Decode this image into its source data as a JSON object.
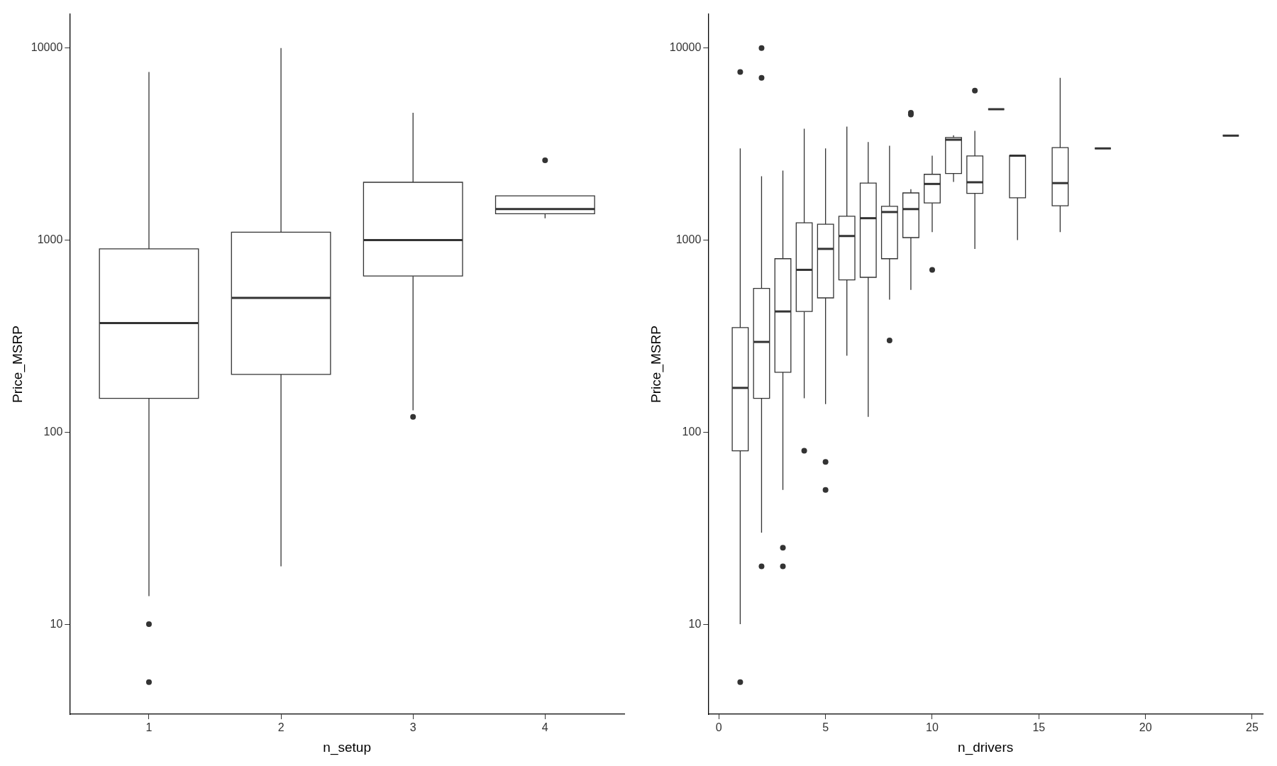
{
  "chart_data": [
    {
      "type": "box",
      "categories": [
        "1",
        "2",
        "3",
        "4"
      ],
      "xlabel": "n_setup",
      "ylabel": "Price_MSRP",
      "log": "y",
      "ylim": [
        3.4,
        15000
      ],
      "yticks": [
        10,
        100,
        1000,
        10000
      ],
      "grid": false,
      "boxes": [
        {
          "low": 14,
          "q1": 150,
          "median": 370,
          "q3": 900,
          "high": 7500,
          "outliers": [
            10,
            5
          ]
        },
        {
          "low": 20,
          "q1": 200,
          "median": 500,
          "q3": 1100,
          "high": 10000
        },
        {
          "low": 130,
          "q1": 650,
          "median": 1000,
          "q3": 2000,
          "high": 4600,
          "outliers": [
            120
          ]
        },
        {
          "low": 1300,
          "q1": 1370,
          "median": 1450,
          "q3": 1700,
          "high": 1700,
          "outliers": [
            2600
          ]
        }
      ]
    },
    {
      "type": "box",
      "x": [
        1,
        2,
        3,
        4,
        5,
        6,
        7,
        8,
        9,
        10,
        11,
        12,
        13,
        14,
        16,
        18,
        24
      ],
      "xlabel": "n_drivers",
      "ylabel": "Price_MSRP",
      "log": "y",
      "ylim": [
        3.4,
        15000
      ],
      "yticks": [
        10,
        100,
        1000,
        10000
      ],
      "xlim": [
        -0.5,
        25.5
      ],
      "xticks": [
        0,
        5,
        10,
        15,
        20,
        25
      ],
      "grid": false,
      "boxes": [
        {
          "low": 10,
          "q1": 80,
          "median": 170,
          "q3": 350,
          "high": 3000,
          "outliers": [
            7500,
            5
          ]
        },
        {
          "low": 30,
          "q1": 150,
          "median": 295,
          "q3": 560,
          "high": 2150,
          "outliers": [
            10000,
            7000,
            20
          ]
        },
        {
          "low": 50,
          "q1": 205,
          "median": 425,
          "q3": 800,
          "high": 2300,
          "outliers": [
            25,
            20
          ]
        },
        {
          "low": 150,
          "q1": 425,
          "median": 700,
          "q3": 1230,
          "high": 3800,
          "outliers": [
            80
          ]
        },
        {
          "low": 140,
          "q1": 500,
          "median": 900,
          "q3": 1210,
          "high": 3000,
          "outliers": [
            70,
            50
          ]
        },
        {
          "low": 250,
          "q1": 620,
          "median": 1050,
          "q3": 1330,
          "high": 3900
        },
        {
          "low": 120,
          "q1": 640,
          "median": 1300,
          "q3": 1980,
          "high": 3240
        },
        {
          "low": 490,
          "q1": 800,
          "median": 1400,
          "q3": 1500,
          "high": 3100,
          "outliers": [
            300
          ]
        },
        {
          "low": 550,
          "q1": 1030,
          "median": 1450,
          "q3": 1760,
          "high": 1840,
          "outliers": [
            4600,
            4500
          ]
        },
        {
          "low": 1100,
          "q1": 1560,
          "median": 1960,
          "q3": 2200,
          "high": 2750,
          "outliers": [
            700
          ]
        },
        {
          "low": 2010,
          "q1": 2220,
          "median": 3330,
          "q3": 3420,
          "high": 3510
        },
        {
          "low": 900,
          "q1": 1750,
          "median": 2000,
          "q3": 2740,
          "high": 3700,
          "outliers": [
            6000
          ]
        },
        {
          "low": 4800,
          "q1": 4800,
          "median": 4800,
          "q3": 4800,
          "high": 4800
        },
        {
          "low": 1000,
          "q1": 1660,
          "median": 2750,
          "q3": 2750,
          "high": 2750
        },
        {
          "low": 1100,
          "q1": 1510,
          "median": 1980,
          "q3": 3030,
          "high": 7000
        },
        {
          "low": 3000,
          "q1": 3000,
          "median": 3000,
          "q3": 3000,
          "high": 3000
        },
        {
          "low": 3500,
          "q1": 3500,
          "median": 3500,
          "q3": 3500,
          "high": 3500
        }
      ]
    }
  ]
}
